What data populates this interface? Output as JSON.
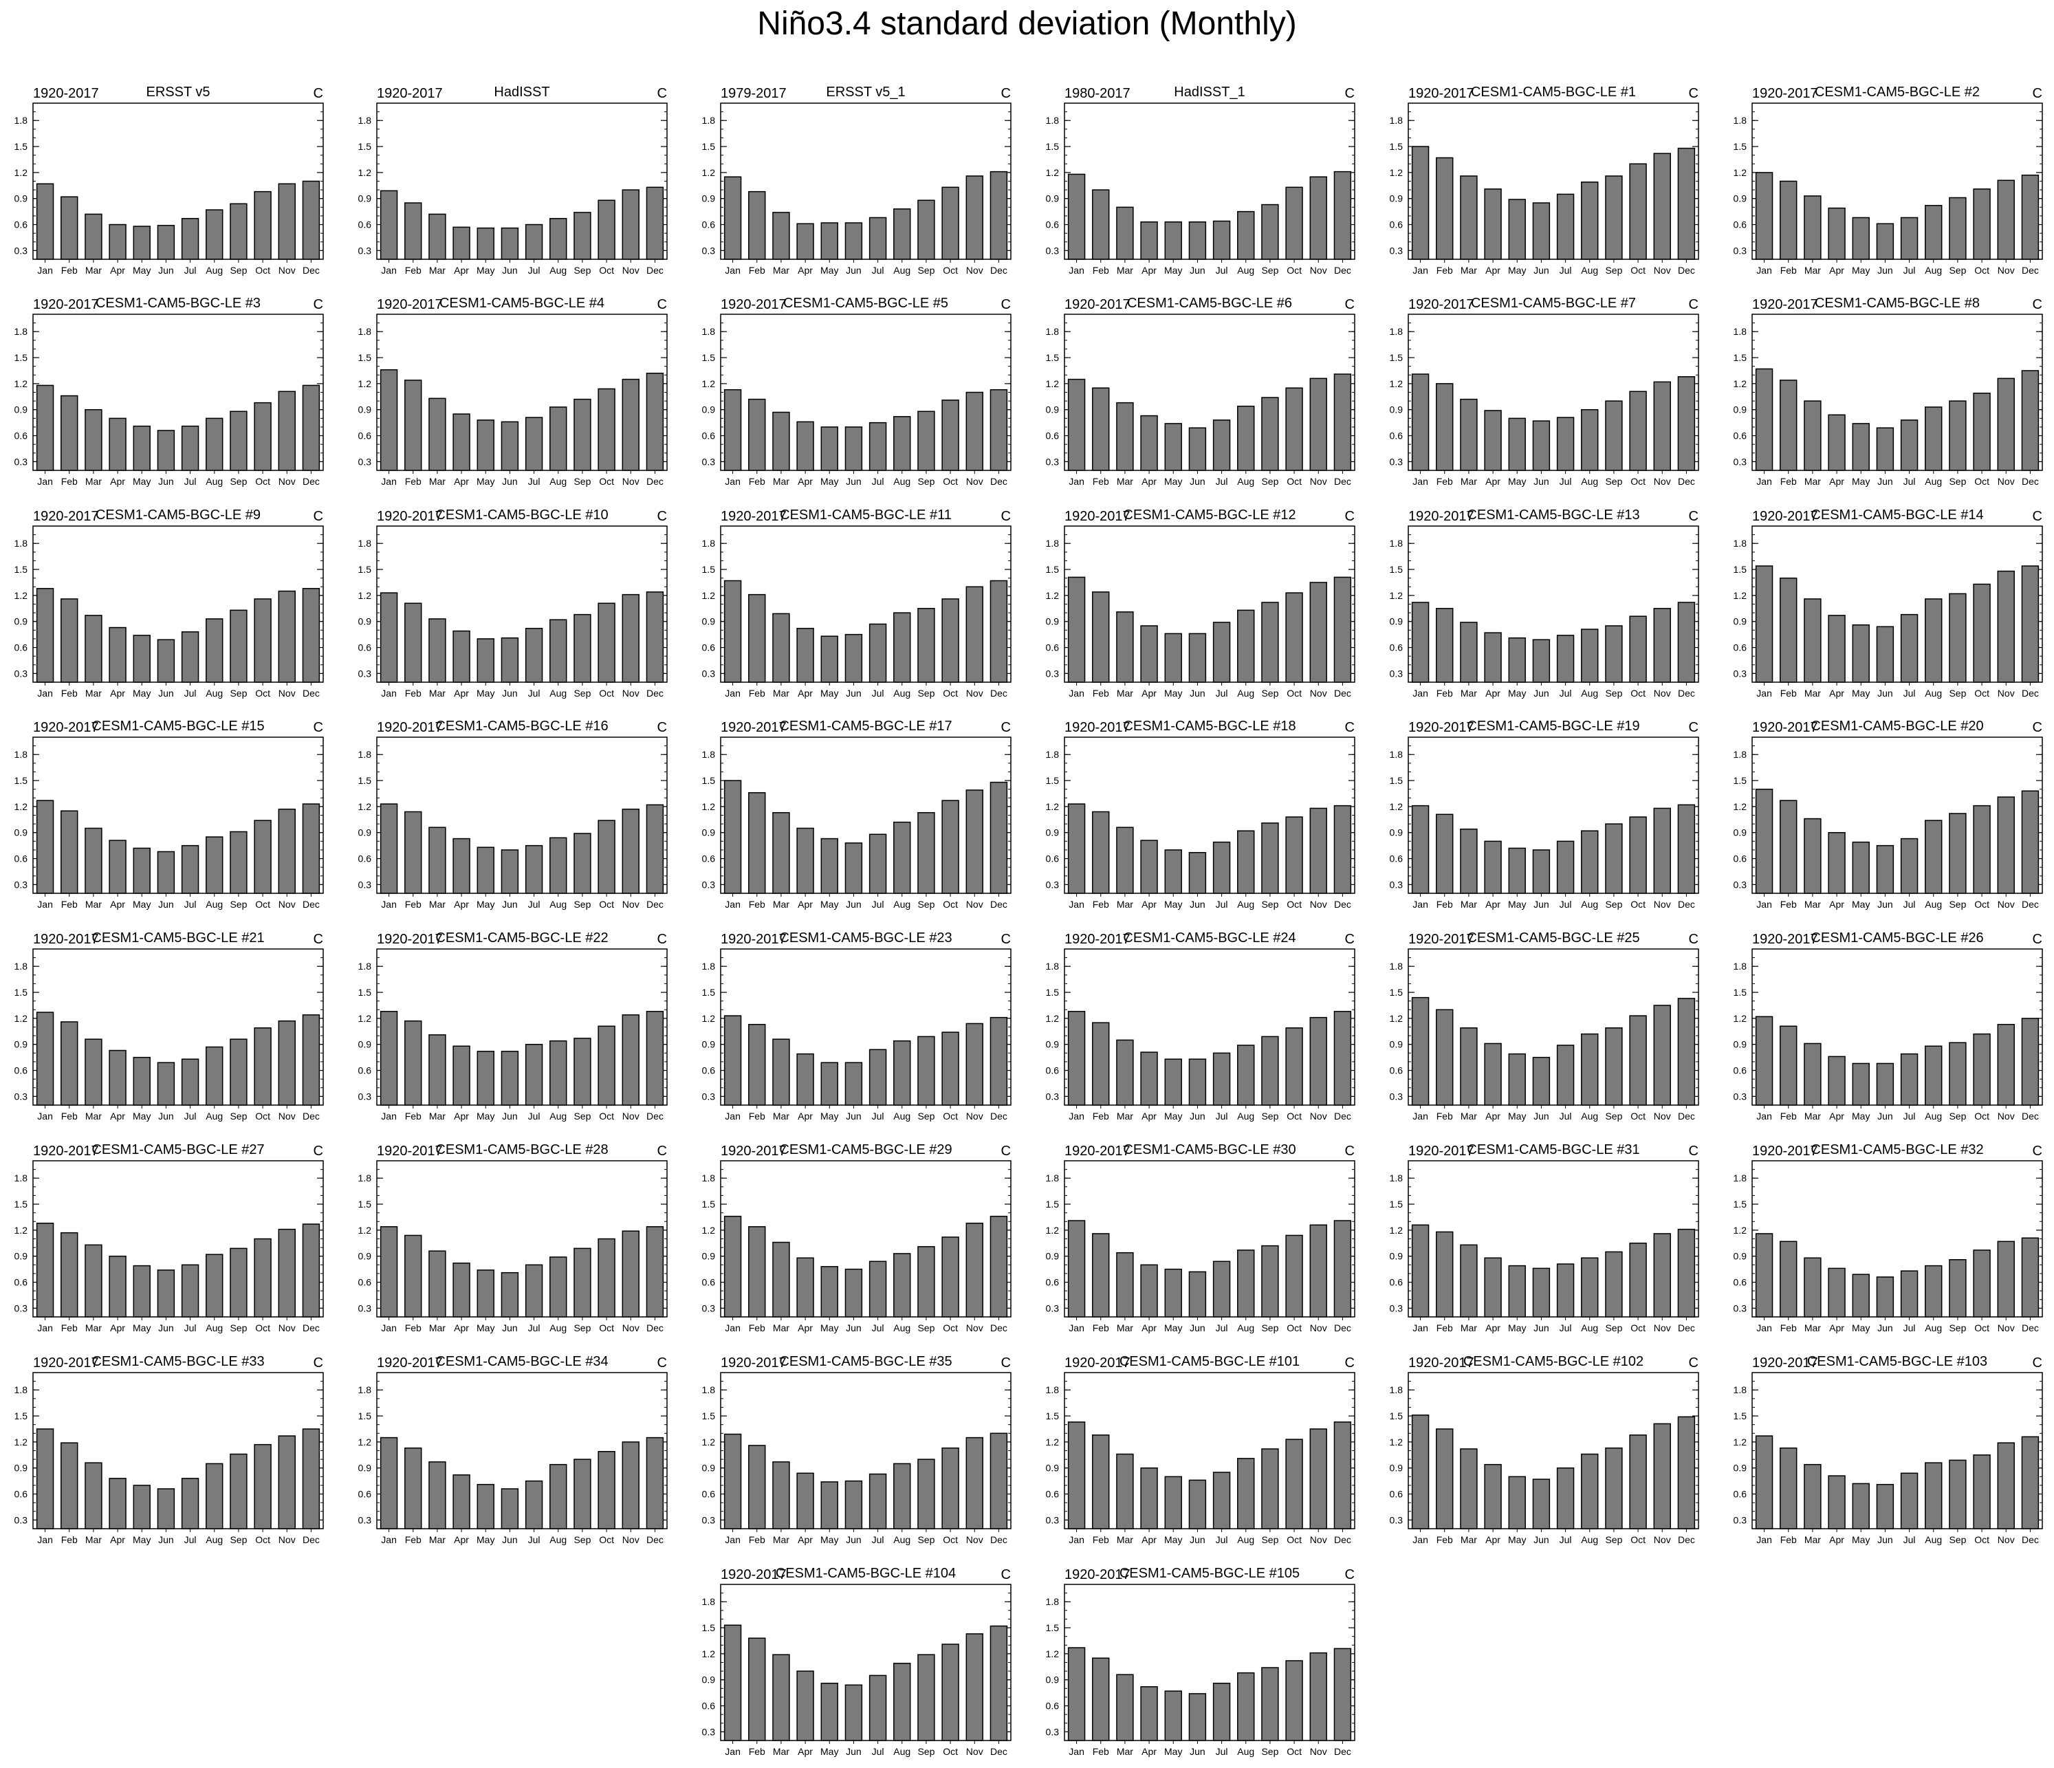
{
  "title": "Niño3.4 standard deviation (Monthly)",
  "chart_data": {
    "type": "bar",
    "categories": [
      "Jan",
      "Feb",
      "Mar",
      "Apr",
      "May",
      "Jun",
      "Jul",
      "Aug",
      "Sep",
      "Oct",
      "Nov",
      "Dec"
    ],
    "yticks": [
      0.3,
      0.6,
      0.9,
      1.2,
      1.5,
      1.8
    ],
    "ylim": [
      0.2,
      2.0
    ],
    "units": "C",
    "bar_color": "#7b7b7b",
    "panels": [
      {
        "period": "1920-2017",
        "name": "ERSST v5",
        "values": [
          1.07,
          0.92,
          0.72,
          0.6,
          0.58,
          0.59,
          0.67,
          0.77,
          0.84,
          0.98,
          1.07,
          1.1
        ]
      },
      {
        "period": "1920-2017",
        "name": "HadISST",
        "values": [
          0.99,
          0.85,
          0.72,
          0.57,
          0.56,
          0.56,
          0.6,
          0.67,
          0.74,
          0.88,
          1.0,
          1.03
        ]
      },
      {
        "period": "1979-2017",
        "name": "ERSST v5_1",
        "values": [
          1.15,
          0.98,
          0.74,
          0.61,
          0.62,
          0.62,
          0.68,
          0.78,
          0.88,
          1.03,
          1.16,
          1.21
        ]
      },
      {
        "period": "1980-2017",
        "name": "HadISST_1",
        "values": [
          1.18,
          1.0,
          0.8,
          0.63,
          0.63,
          0.63,
          0.64,
          0.75,
          0.83,
          1.03,
          1.15,
          1.21
        ]
      },
      {
        "period": "1920-2017",
        "name": "CESM1-CAM5-BGC-LE #1",
        "values": [
          1.5,
          1.37,
          1.16,
          1.01,
          0.89,
          0.85,
          0.95,
          1.09,
          1.16,
          1.3,
          1.42,
          1.48
        ]
      },
      {
        "period": "1920-2017",
        "name": "CESM1-CAM5-BGC-LE #2",
        "values": [
          1.2,
          1.1,
          0.93,
          0.79,
          0.68,
          0.61,
          0.68,
          0.82,
          0.91,
          1.01,
          1.11,
          1.17
        ]
      },
      {
        "period": "1920-2017",
        "name": "CESM1-CAM5-BGC-LE #3",
        "values": [
          1.18,
          1.06,
          0.9,
          0.8,
          0.71,
          0.66,
          0.71,
          0.8,
          0.88,
          0.98,
          1.11,
          1.18
        ]
      },
      {
        "period": "1920-2017",
        "name": "CESM1-CAM5-BGC-LE #4",
        "values": [
          1.36,
          1.24,
          1.03,
          0.85,
          0.78,
          0.76,
          0.81,
          0.93,
          1.02,
          1.14,
          1.25,
          1.32
        ]
      },
      {
        "period": "1920-2017",
        "name": "CESM1-CAM5-BGC-LE #5",
        "values": [
          1.13,
          1.02,
          0.87,
          0.76,
          0.7,
          0.7,
          0.75,
          0.82,
          0.88,
          1.01,
          1.1,
          1.13
        ]
      },
      {
        "period": "1920-2017",
        "name": "CESM1-CAM5-BGC-LE #6",
        "values": [
          1.25,
          1.15,
          0.98,
          0.83,
          0.74,
          0.69,
          0.78,
          0.94,
          1.04,
          1.15,
          1.26,
          1.31
        ]
      },
      {
        "period": "1920-2017",
        "name": "CESM1-CAM5-BGC-LE #7",
        "values": [
          1.31,
          1.2,
          1.02,
          0.89,
          0.8,
          0.77,
          0.81,
          0.9,
          1.0,
          1.11,
          1.22,
          1.28
        ]
      },
      {
        "period": "1920-2017",
        "name": "CESM1-CAM5-BGC-LE #8",
        "values": [
          1.37,
          1.24,
          1.0,
          0.84,
          0.74,
          0.69,
          0.78,
          0.93,
          1.0,
          1.09,
          1.26,
          1.35
        ]
      },
      {
        "period": "1920-2017",
        "name": "CESM1-CAM5-BGC-LE #9",
        "values": [
          1.28,
          1.16,
          0.97,
          0.83,
          0.74,
          0.69,
          0.78,
          0.93,
          1.03,
          1.16,
          1.25,
          1.28
        ]
      },
      {
        "period": "1920-2017",
        "name": "CESM1-CAM5-BGC-LE #10",
        "values": [
          1.23,
          1.11,
          0.93,
          0.79,
          0.7,
          0.71,
          0.82,
          0.92,
          0.98,
          1.11,
          1.21,
          1.24
        ]
      },
      {
        "period": "1920-2017",
        "name": "CESM1-CAM5-BGC-LE #11",
        "values": [
          1.37,
          1.21,
          0.99,
          0.82,
          0.73,
          0.75,
          0.87,
          1.0,
          1.05,
          1.16,
          1.3,
          1.37
        ]
      },
      {
        "period": "1920-2017",
        "name": "CESM1-CAM5-BGC-LE #12",
        "values": [
          1.41,
          1.24,
          1.01,
          0.85,
          0.76,
          0.76,
          0.89,
          1.03,
          1.12,
          1.23,
          1.35,
          1.41
        ]
      },
      {
        "period": "1920-2017",
        "name": "CESM1-CAM5-BGC-LE #13",
        "values": [
          1.12,
          1.05,
          0.89,
          0.77,
          0.71,
          0.69,
          0.74,
          0.81,
          0.85,
          0.96,
          1.05,
          1.12
        ]
      },
      {
        "period": "1920-2017",
        "name": "CESM1-CAM5-BGC-LE #14",
        "values": [
          1.54,
          1.4,
          1.16,
          0.97,
          0.86,
          0.84,
          0.98,
          1.16,
          1.22,
          1.33,
          1.48,
          1.54
        ]
      },
      {
        "period": "1920-2017",
        "name": "CESM1-CAM5-BGC-LE #15",
        "values": [
          1.27,
          1.15,
          0.95,
          0.81,
          0.72,
          0.68,
          0.75,
          0.85,
          0.91,
          1.04,
          1.17,
          1.23
        ]
      },
      {
        "period": "1920-2017",
        "name": "CESM1-CAM5-BGC-LE #16",
        "values": [
          1.23,
          1.14,
          0.96,
          0.83,
          0.73,
          0.7,
          0.75,
          0.84,
          0.89,
          1.04,
          1.17,
          1.22
        ]
      },
      {
        "period": "1920-2017",
        "name": "CESM1-CAM5-BGC-LE #17",
        "values": [
          1.5,
          1.36,
          1.13,
          0.95,
          0.83,
          0.78,
          0.88,
          1.02,
          1.13,
          1.27,
          1.39,
          1.48
        ]
      },
      {
        "period": "1920-2017",
        "name": "CESM1-CAM5-BGC-LE #18",
        "values": [
          1.23,
          1.14,
          0.96,
          0.81,
          0.7,
          0.67,
          0.79,
          0.92,
          1.01,
          1.08,
          1.18,
          1.21
        ]
      },
      {
        "period": "1920-2017",
        "name": "CESM1-CAM5-BGC-LE #19",
        "values": [
          1.21,
          1.11,
          0.94,
          0.8,
          0.72,
          0.7,
          0.8,
          0.92,
          1.0,
          1.08,
          1.18,
          1.22
        ]
      },
      {
        "period": "1920-2017",
        "name": "CESM1-CAM5-BGC-LE #20",
        "values": [
          1.4,
          1.27,
          1.06,
          0.9,
          0.79,
          0.75,
          0.83,
          1.04,
          1.12,
          1.21,
          1.31,
          1.38
        ]
      },
      {
        "period": "1920-2017",
        "name": "CESM1-CAM5-BGC-LE #21",
        "values": [
          1.27,
          1.16,
          0.96,
          0.83,
          0.75,
          0.69,
          0.73,
          0.87,
          0.96,
          1.09,
          1.17,
          1.24
        ]
      },
      {
        "period": "1920-2017",
        "name": "CESM1-CAM5-BGC-LE #22",
        "values": [
          1.28,
          1.17,
          1.01,
          0.88,
          0.82,
          0.82,
          0.9,
          0.94,
          0.97,
          1.11,
          1.24,
          1.28
        ]
      },
      {
        "period": "1920-2017",
        "name": "CESM1-CAM5-BGC-LE #23",
        "values": [
          1.23,
          1.13,
          0.96,
          0.79,
          0.69,
          0.69,
          0.84,
          0.94,
          0.99,
          1.04,
          1.14,
          1.21
        ]
      },
      {
        "period": "1920-2017",
        "name": "CESM1-CAM5-BGC-LE #24",
        "values": [
          1.28,
          1.15,
          0.95,
          0.81,
          0.73,
          0.73,
          0.8,
          0.89,
          0.99,
          1.09,
          1.21,
          1.28
        ]
      },
      {
        "period": "1920-2017",
        "name": "CESM1-CAM5-BGC-LE #25",
        "values": [
          1.44,
          1.3,
          1.09,
          0.91,
          0.79,
          0.75,
          0.89,
          1.02,
          1.09,
          1.23,
          1.35,
          1.43
        ]
      },
      {
        "period": "1920-2017",
        "name": "CESM1-CAM5-BGC-LE #26",
        "values": [
          1.22,
          1.11,
          0.91,
          0.76,
          0.68,
          0.68,
          0.79,
          0.88,
          0.92,
          1.02,
          1.13,
          1.2
        ]
      },
      {
        "period": "1920-2017",
        "name": "CESM1-CAM5-BGC-LE #27",
        "values": [
          1.28,
          1.17,
          1.03,
          0.9,
          0.79,
          0.74,
          0.8,
          0.92,
          0.99,
          1.1,
          1.21,
          1.27
        ]
      },
      {
        "period": "1920-2017",
        "name": "CESM1-CAM5-BGC-LE #28",
        "values": [
          1.24,
          1.14,
          0.96,
          0.82,
          0.74,
          0.71,
          0.8,
          0.89,
          0.99,
          1.1,
          1.19,
          1.24
        ]
      },
      {
        "period": "1920-2017",
        "name": "CESM1-CAM5-BGC-LE #29",
        "values": [
          1.36,
          1.24,
          1.06,
          0.88,
          0.78,
          0.75,
          0.84,
          0.93,
          1.01,
          1.12,
          1.28,
          1.36
        ]
      },
      {
        "period": "1920-2017",
        "name": "CESM1-CAM5-BGC-LE #30",
        "values": [
          1.31,
          1.16,
          0.94,
          0.8,
          0.75,
          0.72,
          0.84,
          0.97,
          1.02,
          1.14,
          1.26,
          1.31
        ]
      },
      {
        "period": "1920-2017",
        "name": "CESM1-CAM5-BGC-LE #31",
        "values": [
          1.26,
          1.18,
          1.03,
          0.88,
          0.79,
          0.76,
          0.81,
          0.88,
          0.95,
          1.05,
          1.16,
          1.21
        ]
      },
      {
        "period": "1920-2017",
        "name": "CESM1-CAM5-BGC-LE #32",
        "values": [
          1.16,
          1.07,
          0.88,
          0.76,
          0.69,
          0.66,
          0.73,
          0.79,
          0.86,
          0.97,
          1.07,
          1.11
        ]
      },
      {
        "period": "1920-2017",
        "name": "CESM1-CAM5-BGC-LE #33",
        "values": [
          1.35,
          1.19,
          0.96,
          0.78,
          0.7,
          0.66,
          0.78,
          0.95,
          1.06,
          1.17,
          1.27,
          1.35
        ]
      },
      {
        "period": "1920-2017",
        "name": "CESM1-CAM5-BGC-LE #34",
        "values": [
          1.25,
          1.13,
          0.97,
          0.82,
          0.71,
          0.66,
          0.75,
          0.94,
          1.0,
          1.09,
          1.2,
          1.25
        ]
      },
      {
        "period": "1920-2017",
        "name": "CESM1-CAM5-BGC-LE #35",
        "values": [
          1.29,
          1.16,
          0.97,
          0.84,
          0.74,
          0.75,
          0.83,
          0.95,
          1.0,
          1.13,
          1.25,
          1.3
        ]
      },
      {
        "period": "1920-2017",
        "name": "CESM1-CAM5-BGC-LE #101",
        "values": [
          1.43,
          1.28,
          1.06,
          0.9,
          0.8,
          0.76,
          0.85,
          1.01,
          1.12,
          1.23,
          1.35,
          1.43
        ]
      },
      {
        "period": "1920-2017",
        "name": "CESM1-CAM5-BGC-LE #102",
        "values": [
          1.51,
          1.35,
          1.12,
          0.94,
          0.8,
          0.77,
          0.9,
          1.06,
          1.13,
          1.28,
          1.41,
          1.49
        ]
      },
      {
        "period": "1920-2017",
        "name": "CESM1-CAM5-BGC-LE #103",
        "values": [
          1.27,
          1.13,
          0.94,
          0.81,
          0.72,
          0.71,
          0.84,
          0.96,
          0.99,
          1.05,
          1.19,
          1.26
        ]
      },
      {
        "period": "1920-2017",
        "name": "CESM1-CAM5-BGC-LE #104",
        "values": [
          1.53,
          1.38,
          1.19,
          1.0,
          0.86,
          0.84,
          0.95,
          1.09,
          1.19,
          1.31,
          1.43,
          1.52
        ]
      },
      {
        "period": "1920-2017",
        "name": "CESM1-CAM5-BGC-LE #105",
        "values": [
          1.27,
          1.15,
          0.96,
          0.82,
          0.77,
          0.74,
          0.86,
          0.98,
          1.04,
          1.12,
          1.21,
          1.26
        ]
      }
    ]
  }
}
